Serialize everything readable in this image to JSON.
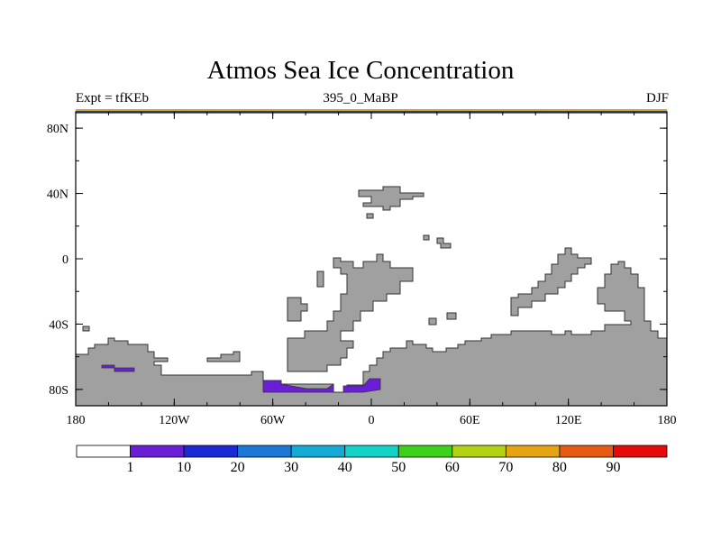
{
  "title": "Atmos Sea Ice Concentration",
  "subtitle_left": "Expt = tfKEb",
  "subtitle_center": "395_0_MaBP",
  "subtitle_right": "DJF",
  "map": {
    "projection": "cylindrical-equidistant",
    "lon_ticks": [
      {
        "value": -180,
        "label": "180"
      },
      {
        "value": -120,
        "label": "120W"
      },
      {
        "value": -60,
        "label": "60W"
      },
      {
        "value": 0,
        "label": "0"
      },
      {
        "value": 60,
        "label": "60E"
      },
      {
        "value": 120,
        "label": "120E"
      },
      {
        "value": 180,
        "label": "180"
      }
    ],
    "lat_ticks": [
      {
        "value": 80,
        "label": "80N"
      },
      {
        "value": 40,
        "label": "40N"
      },
      {
        "value": 0,
        "label": "0"
      },
      {
        "value": -40,
        "label": "40S"
      },
      {
        "value": -80,
        "label": "80S"
      }
    ],
    "land_color": "#a0a0a0",
    "ice_color": "#6a1ed6",
    "north_pole_band_colors": [
      "#d2a24a",
      "#2c7fdc"
    ]
  },
  "colorbar": {
    "colors": [
      "#ffffff",
      "#6a1ed6",
      "#1c2ad6",
      "#1c78d6",
      "#14aad6",
      "#14d2c8",
      "#3cd21c",
      "#b4d214",
      "#e6a414",
      "#e65a14",
      "#e60a0a"
    ],
    "labels": [
      "1",
      "10",
      "20",
      "30",
      "40",
      "50",
      "60",
      "70",
      "80",
      "90"
    ]
  }
}
